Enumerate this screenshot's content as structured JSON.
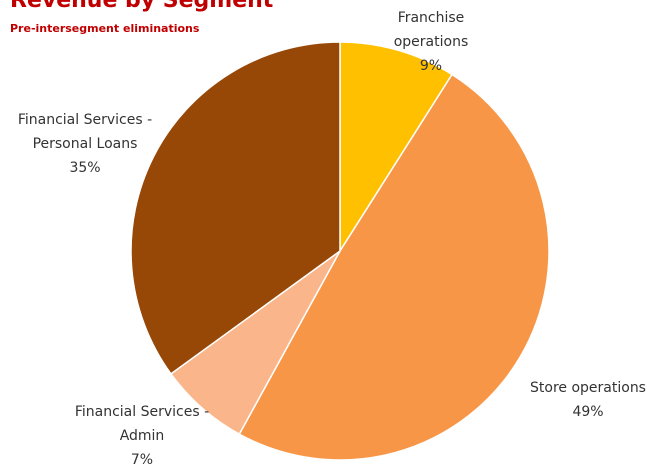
{
  "chart_data": {
    "type": "pie",
    "title": "Revenue by Segment",
    "subtitle": "Pre-intersegment eliminations",
    "categories": [
      "Franchise operations",
      "Store operations",
      "Financial Services - Admin",
      "Financial Services - Personal Loans"
    ],
    "values": [
      9,
      49,
      7,
      35
    ],
    "value_labels": [
      "9%",
      "49%",
      "7%",
      "35%"
    ],
    "colors": [
      "#ffc000",
      "#f79646",
      "#fab58a",
      "#974706"
    ]
  }
}
